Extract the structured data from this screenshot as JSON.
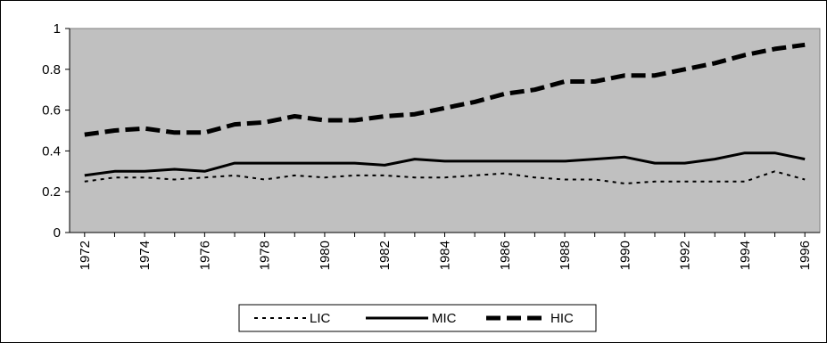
{
  "chart_data": {
    "type": "line",
    "title": "",
    "xlabel": "",
    "ylabel": "",
    "x": [
      1972.5,
      1973.5,
      1974.5,
      1975.5,
      1976.5,
      1977.5,
      1978.5,
      1979.5,
      1980.5,
      1981.5,
      1982.5,
      1983.5,
      1984.5,
      1985.5,
      1986.5,
      1987.5,
      1988.5,
      1989.5,
      1990.5,
      1991.5,
      1992.5,
      1993.5,
      1994.5,
      1995.5,
      1996.5
    ],
    "xlim": [
      1972,
      1997
    ],
    "ylim": [
      0,
      1
    ],
    "x_ticks": [
      "1972",
      "1974",
      "1976",
      "1978",
      "1980",
      "1982",
      "1984",
      "1986",
      "1988",
      "1990",
      "1992",
      "1994",
      "1996"
    ],
    "x_tick_values": [
      1972.5,
      1974.5,
      1976.5,
      1978.5,
      1980.5,
      1982.5,
      1984.5,
      1986.5,
      1988.5,
      1990.5,
      1992.5,
      1994.5,
      1996.5
    ],
    "y_ticks": [
      "0",
      "0.2",
      "0.4",
      "0.6",
      "0.8",
      "1"
    ],
    "y_tick_values": [
      0,
      0.2,
      0.4,
      0.6,
      0.8,
      1
    ],
    "grid": false,
    "plot_background": "#c0c0c0",
    "legend_position": "bottom",
    "series": [
      {
        "name": "LIC",
        "style": "dotted",
        "color": "#000000",
        "values": [
          0.25,
          0.27,
          0.27,
          0.26,
          0.27,
          0.28,
          0.26,
          0.28,
          0.27,
          0.28,
          0.28,
          0.27,
          0.27,
          0.28,
          0.29,
          0.27,
          0.26,
          0.26,
          0.24,
          0.25,
          0.25,
          0.25,
          0.25,
          0.3,
          0.26
        ]
      },
      {
        "name": "MIC",
        "style": "solid",
        "color": "#000000",
        "values": [
          0.28,
          0.3,
          0.3,
          0.31,
          0.3,
          0.34,
          0.34,
          0.34,
          0.34,
          0.34,
          0.33,
          0.36,
          0.35,
          0.35,
          0.35,
          0.35,
          0.35,
          0.36,
          0.37,
          0.34,
          0.34,
          0.36,
          0.39,
          0.39,
          0.36
        ]
      },
      {
        "name": "HIC",
        "style": "heavy-dashed",
        "color": "#000000",
        "values": [
          0.48,
          0.5,
          0.51,
          0.49,
          0.49,
          0.53,
          0.54,
          0.57,
          0.55,
          0.55,
          0.57,
          0.58,
          0.61,
          0.64,
          0.68,
          0.7,
          0.74,
          0.74,
          0.77,
          0.77,
          0.8,
          0.83,
          0.87,
          0.9,
          0.92
        ]
      }
    ]
  }
}
